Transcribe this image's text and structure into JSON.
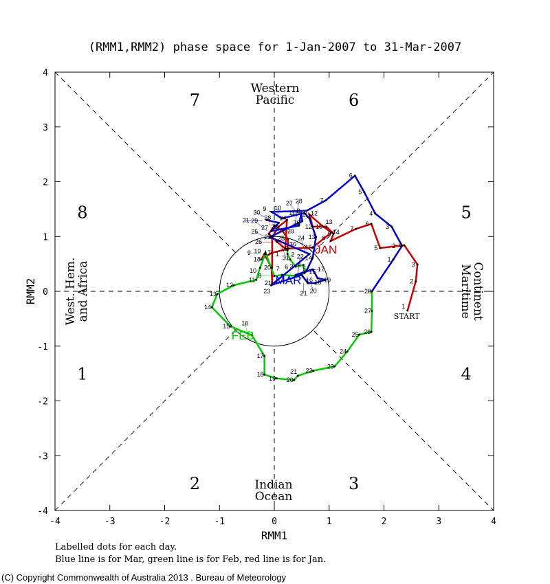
{
  "chart_data": {
    "type": "line",
    "title": "(RMM1,RMM2) phase space for  1-Jan-2007 to 31-Mar-2007",
    "xlabel": "RMM1",
    "ylabel": "RMM2",
    "xlim": [
      -4,
      4
    ],
    "ylim": [
      -4,
      4
    ],
    "xticks": [
      "-4",
      "-3",
      "-2",
      "-1",
      "0",
      "1",
      "2",
      "3",
      "4"
    ],
    "yticks": [
      "-4",
      "-3",
      "-2",
      "-1",
      "0",
      "1",
      "2",
      "3",
      "4"
    ],
    "phases": [
      "1",
      "2",
      "3",
      "4",
      "5",
      "6",
      "7",
      "8"
    ],
    "regions": {
      "top": [
        "Western",
        "Pacific"
      ],
      "bottom": [
        "Indian",
        "Ocean"
      ],
      "left": [
        "West. Hem.",
        "and Africa"
      ],
      "right": [
        "Maritime",
        "Continent"
      ]
    },
    "start_label": "START",
    "series": [
      {
        "name": "JAN",
        "color": "#cc0000",
        "points": [
          [
            2.43,
            -0.35
          ],
          [
            2.58,
            0.18
          ],
          [
            2.61,
            0.49
          ],
          [
            2.37,
            0.84
          ],
          [
            1.93,
            0.79
          ],
          [
            1.77,
            1.23
          ],
          [
            1.49,
            1.14
          ],
          [
            1.03,
            0.92
          ],
          [
            1.08,
            1.05
          ],
          [
            0.89,
            1.18
          ],
          [
            0.64,
            1.4
          ],
          [
            0.7,
            1.18
          ],
          [
            0.95,
            1.18
          ],
          [
            1.05,
            1.08
          ],
          [
            0.7,
            0.8
          ],
          [
            0.26,
            0.78
          ],
          [
            -0.05,
            0.7
          ],
          [
            -0.24,
            0.58
          ],
          [
            -0.18,
            0.68
          ],
          [
            -0.05,
            0.43
          ],
          [
            -0.04,
            0.15
          ],
          [
            -0.04,
            0.99
          ],
          [
            0.08,
            1.18
          ],
          [
            0.23,
            1.3
          ],
          [
            0.2,
            0.78
          ],
          [
            0.05,
            0.9
          ],
          [
            -0.1,
            1.05
          ],
          [
            0.0,
            1.2
          ],
          [
            0.15,
            1.1
          ],
          [
            0.25,
            0.95
          ],
          [
            0.24,
            0.75
          ]
        ]
      },
      {
        "name": "FEB",
        "color": "#00cc00",
        "points": [
          [
            0.24,
            0.68
          ],
          [
            0.29,
            0.58
          ],
          [
            0.39,
            0.45
          ],
          [
            0.53,
            0.48
          ],
          [
            0.55,
            0.33
          ],
          [
            0.39,
            0.28
          ],
          [
            0.14,
            0.3
          ],
          [
            0.0,
            0.28
          ],
          [
            -0.16,
            0.7
          ],
          [
            -0.26,
            0.43
          ],
          [
            -0.33,
            0.21
          ],
          [
            -0.74,
            0.11
          ],
          [
            -1.04,
            -0.05
          ],
          [
            -1.14,
            -0.29
          ],
          [
            -0.8,
            -0.64
          ],
          [
            -0.41,
            -0.8
          ],
          [
            -0.18,
            -1.18
          ],
          [
            -0.18,
            -1.52
          ],
          [
            0.04,
            -1.59
          ],
          [
            0.36,
            -1.62
          ],
          [
            0.43,
            -1.54
          ],
          [
            0.71,
            -1.45
          ],
          [
            1.1,
            -1.37
          ],
          [
            1.33,
            -1.1
          ],
          [
            1.55,
            -0.79
          ],
          [
            1.77,
            -0.74
          ],
          [
            1.78,
            -0.36
          ],
          [
            1.78,
            0.0
          ]
        ]
      },
      {
        "name": "MAR",
        "color": "#0000cc",
        "points": [
          [
            2.17,
            0.58
          ],
          [
            2.33,
            0.83
          ],
          [
            2.14,
            1.18
          ],
          [
            1.84,
            1.42
          ],
          [
            1.64,
            1.81
          ],
          [
            1.47,
            2.11
          ],
          [
            0.94,
            1.66
          ],
          [
            0.59,
            1.47
          ],
          [
            -0.05,
            1.45
          ],
          [
            0.14,
            1.33
          ],
          [
            0.55,
            1.43
          ],
          [
            0.64,
            1.33
          ],
          [
            0.76,
            0.99
          ],
          [
            0.7,
            0.61
          ],
          [
            0.58,
            0.36
          ],
          [
            0.39,
            0.3
          ],
          [
            0.7,
            0.4
          ],
          [
            0.79,
            0.24
          ],
          [
            0.93,
            0.21
          ],
          [
            0.74,
            0.15
          ],
          [
            0.61,
            0.15
          ],
          [
            0.5,
            0.3
          ],
          [
            -0.06,
            0.11
          ],
          [
            0.64,
            0.68
          ],
          [
            -0.08,
            0.99
          ],
          [
            0.51,
            1.28
          ],
          [
            0.49,
            1.43
          ],
          [
            0.45,
            1.2
          ],
          [
            -0.05,
            1.1
          ],
          [
            0.08,
            1.25
          ],
          [
            -0.14,
            1.3
          ]
        ]
      }
    ],
    "month_label_positions": {
      "JAN": [
        0.74,
        0.78
      ],
      "FEB": [
        -0.78,
        -0.79
      ],
      "MAR": [
        0.02,
        0.22
      ]
    }
  },
  "footer": {
    "line1": "Labelled dots for each day.",
    "line2": "Blue line is for Mar, green line is for Feb, red line is for Jan.",
    "copyright": "(C) Copyright Commonwealth of Australia 2013 . Bureau of Meteorology"
  }
}
